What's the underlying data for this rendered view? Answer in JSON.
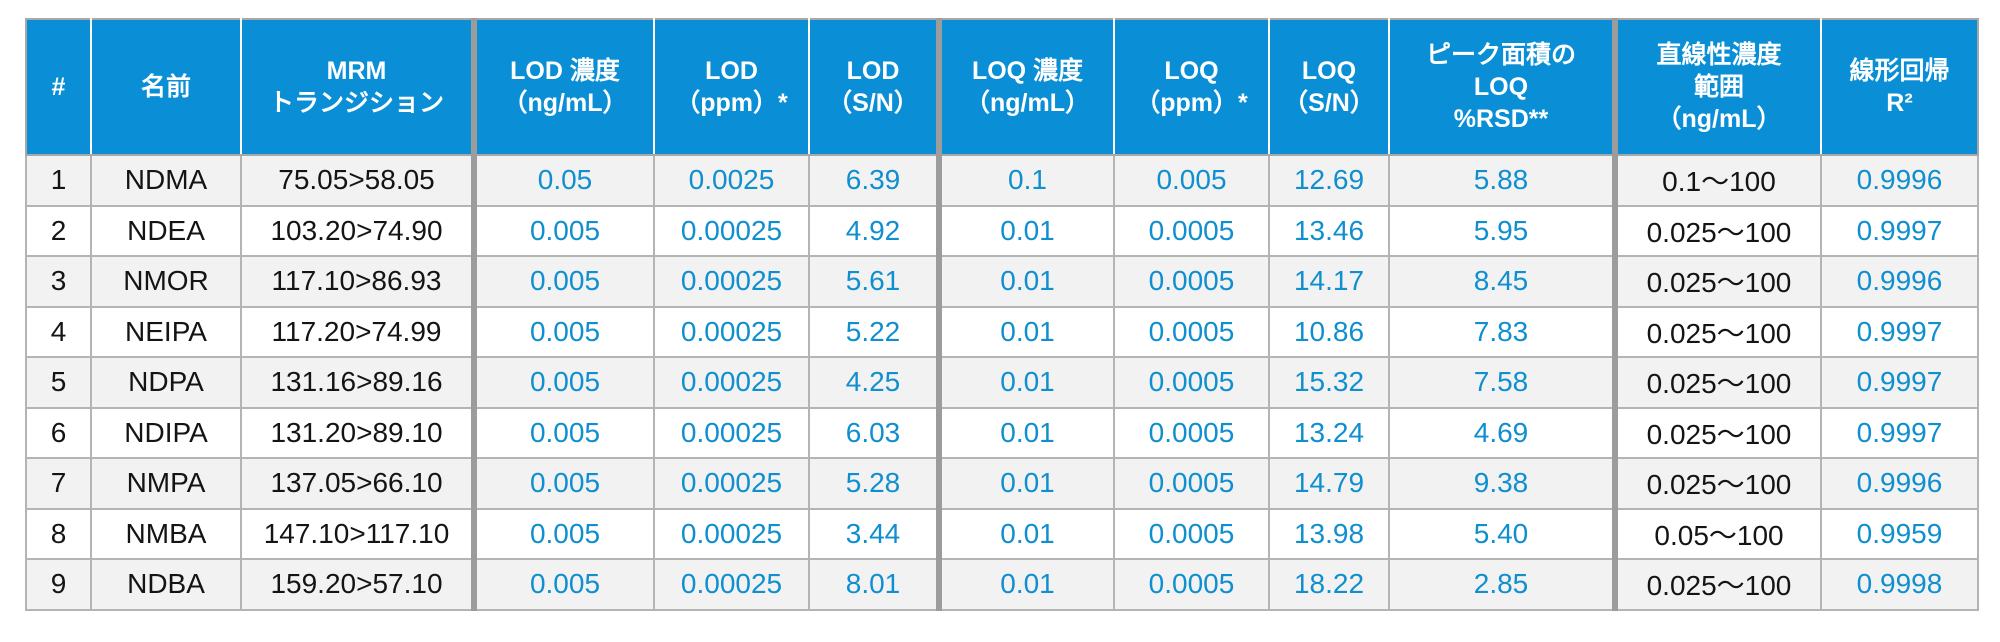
{
  "table": {
    "headers": [
      "#",
      "名前",
      "MRM\nトランジション",
      "LOD 濃度\n（ng/mL）",
      "LOD\n（ppm）*",
      "LOD\n（S/N）",
      "LOQ 濃度\n（ng/mL）",
      "LOQ\n（ppm）*",
      "LOQ\n（S/N）",
      "ピーク面積の\nLOQ\n%RSD**",
      "直線性濃度\n範囲\n（ng/mL）",
      "線形回帰\nR²"
    ],
    "rows": [
      [
        "1",
        "NDMA",
        "75.05>58.05",
        "0.05",
        "0.0025",
        "6.39",
        "0.1",
        "0.005",
        "12.69",
        "5.88",
        "0.1～100",
        "0.9996"
      ],
      [
        "2",
        "NDEA",
        "103.20>74.90",
        "0.005",
        "0.00025",
        "4.92",
        "0.01",
        "0.0005",
        "13.46",
        "5.95",
        "0.025～100",
        "0.9997"
      ],
      [
        "3",
        "NMOR",
        "117.10>86.93",
        "0.005",
        "0.00025",
        "5.61",
        "0.01",
        "0.0005",
        "14.17",
        "8.45",
        "0.025～100",
        "0.9996"
      ],
      [
        "4",
        "NEIPA",
        "117.20>74.99",
        "0.005",
        "0.00025",
        "5.22",
        "0.01",
        "0.0005",
        "10.86",
        "7.83",
        "0.025～100",
        "0.9997"
      ],
      [
        "5",
        "NDPA",
        "131.16>89.16",
        "0.005",
        "0.00025",
        "4.25",
        "0.01",
        "0.0005",
        "15.32",
        "7.58",
        "0.025～100",
        "0.9997"
      ],
      [
        "6",
        "NDIPA",
        "131.20>89.10",
        "0.005",
        "0.00025",
        "6.03",
        "0.01",
        "0.0005",
        "13.24",
        "4.69",
        "0.025～100",
        "0.9997"
      ],
      [
        "7",
        "NMPA",
        "137.05>66.10",
        "0.005",
        "0.00025",
        "5.28",
        "0.01",
        "0.0005",
        "14.79",
        "9.38",
        "0.025～100",
        "0.9996"
      ],
      [
        "8",
        "NMBA",
        "147.10>117.10",
        "0.005",
        "0.00025",
        "3.44",
        "0.01",
        "0.0005",
        "13.98",
        "5.40",
        "0.05～100",
        "0.9959"
      ],
      [
        "9",
        "NDBA",
        "159.20>57.10",
        "0.005",
        "0.00025",
        "8.01",
        "0.01",
        "0.0005",
        "18.22",
        "2.85",
        "0.025～100",
        "0.9998"
      ]
    ]
  },
  "colors": {
    "header_bg": "#0a8fd6",
    "value_blue": "#0f8fcf",
    "text_dark": "#141414",
    "row_alt": "#f2f2f2"
  }
}
